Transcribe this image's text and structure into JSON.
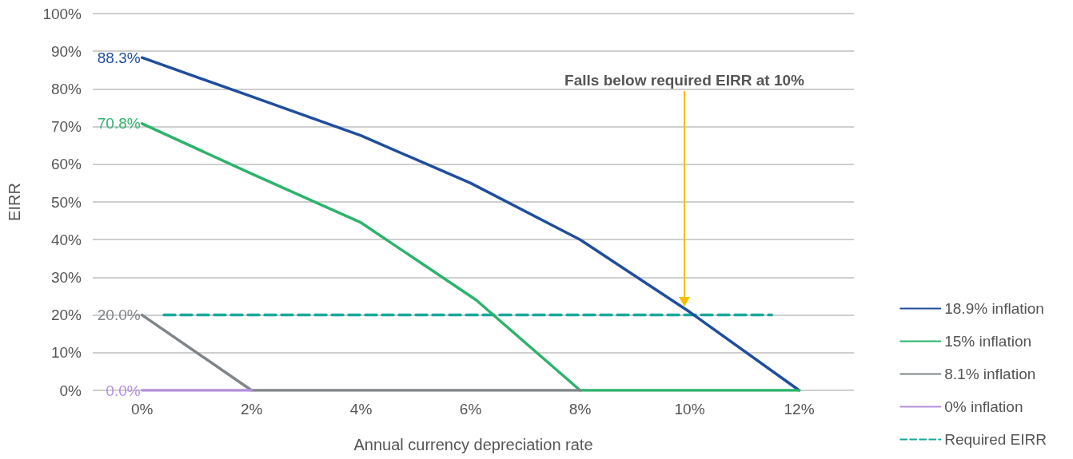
{
  "chart_data": {
    "type": "line",
    "xlabel": "Annual currency depreciation rate",
    "ylabel": "EIRR",
    "xlim": [
      -0.9,
      13
    ],
    "xticks": [
      {
        "value": 0,
        "label": "0%"
      },
      {
        "value": 2,
        "label": "2%"
      },
      {
        "value": 4,
        "label": "4%"
      },
      {
        "value": 6,
        "label": "6%"
      },
      {
        "value": 8,
        "label": "8%"
      },
      {
        "value": 10,
        "label": "10%"
      },
      {
        "value": 12,
        "label": "12%"
      }
    ],
    "ylim": [
      0,
      100
    ],
    "yticks": [
      {
        "value": 0,
        "label": "0%"
      },
      {
        "value": 10,
        "label": "10%"
      },
      {
        "value": 20,
        "label": "20%"
      },
      {
        "value": 30,
        "label": "30%"
      },
      {
        "value": 40,
        "label": "40%"
      },
      {
        "value": 50,
        "label": "50%"
      },
      {
        "value": 60,
        "label": "60%"
      },
      {
        "value": 70,
        "label": "70%"
      },
      {
        "value": 80,
        "label": "80%"
      },
      {
        "value": 90,
        "label": "90%"
      },
      {
        "value": 100,
        "label": "100%"
      }
    ],
    "grid": "y",
    "legend": "right",
    "marker": "none",
    "annotations": [
      "Falls below required EIRR at 10%"
    ],
    "series": [
      {
        "name": "18.9% inflation",
        "color": "#1f4e9c",
        "x": [
          0,
          2,
          4,
          6,
          8,
          10,
          12
        ],
        "values": [
          88.3,
          78,
          67.6,
          55,
          40,
          20.8,
          0
        ],
        "value_labels": [
          "88.3%",
          null,
          null,
          null,
          null,
          null,
          null
        ]
      },
      {
        "name": "15% inflation",
        "color": "#2db36b",
        "x": [
          0,
          2,
          4,
          6.1,
          8,
          10,
          12
        ],
        "values": [
          70.8,
          57.5,
          44.5,
          24,
          0,
          0,
          0
        ],
        "value_labels": [
          "70.8%",
          null,
          null,
          null,
          null,
          null,
          null
        ]
      },
      {
        "name": "8.1% inflation",
        "color": "#7f8589",
        "x": [
          0,
          2,
          4,
          6,
          8
        ],
        "values": [
          20,
          0,
          0,
          0,
          0
        ],
        "value_labels": [
          "20.0%",
          null,
          null,
          null,
          null
        ]
      },
      {
        "name": "0% inflation",
        "color": "#b48fdc",
        "x": [
          0,
          2
        ],
        "values": [
          0,
          0
        ],
        "value_labels": [
          "0.0%",
          null
        ]
      },
      {
        "name": "Required EIRR",
        "color": "#1aa89a",
        "line_style": "dashed",
        "x": [
          0.4,
          11.5
        ],
        "values": [
          20,
          20
        ]
      }
    ]
  }
}
